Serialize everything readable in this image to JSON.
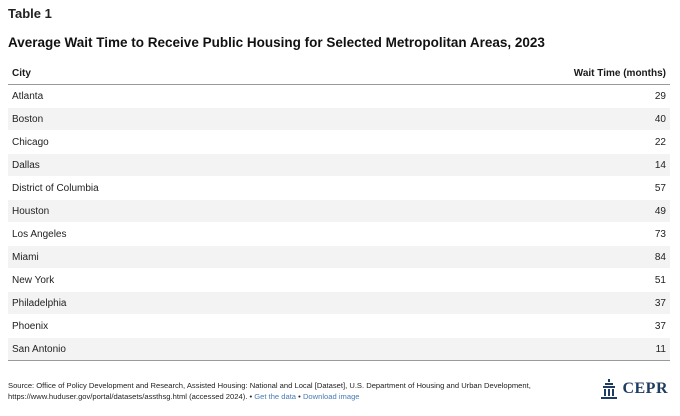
{
  "table_label": "Table 1",
  "title": "Average Wait Time to Receive Public Housing for Selected Metropolitan Areas, 2023",
  "columns": [
    "City",
    "Wait Time (months)"
  ],
  "rows": [
    {
      "city": "Atlanta",
      "wait": "29"
    },
    {
      "city": "Boston",
      "wait": "40"
    },
    {
      "city": "Chicago",
      "wait": "22"
    },
    {
      "city": "Dallas",
      "wait": "14"
    },
    {
      "city": "District of Columbia",
      "wait": "57"
    },
    {
      "city": "Houston",
      "wait": "49"
    },
    {
      "city": "Los Angeles",
      "wait": "73"
    },
    {
      "city": "Miami",
      "wait": "84"
    },
    {
      "city": "New York",
      "wait": "51"
    },
    {
      "city": "Philadelphia",
      "wait": "37"
    },
    {
      "city": "Phoenix",
      "wait": "37"
    },
    {
      "city": "San Antonio",
      "wait": "11"
    }
  ],
  "footer": {
    "source_line1": "Source: Office of Policy Development and Research, Assisted Housing: National and Local [Dataset], U.S. Department of Housing and Urban Development,",
    "source_line2": "https://www.huduser.gov/portal/datasets/assthsg.html (accessed 2024). •",
    "get_data": "Get the data",
    "separator": "•",
    "download_image": "Download image"
  },
  "logo": {
    "text": "CEPR",
    "color": "#1f3d63"
  },
  "colors": {
    "link": "#4a7bb3",
    "row_alt": "#f3f3f3",
    "rule": "#9a9a9a"
  },
  "chart_data": {
    "type": "table",
    "title": "Average Wait Time to Receive Public Housing for Selected Metropolitan Areas, 2023",
    "columns": [
      "City",
      "Wait Time (months)"
    ],
    "rows": [
      [
        "Atlanta",
        29
      ],
      [
        "Boston",
        40
      ],
      [
        "Chicago",
        22
      ],
      [
        "Dallas",
        14
      ],
      [
        "District of Columbia",
        57
      ],
      [
        "Houston",
        49
      ],
      [
        "Los Angeles",
        73
      ],
      [
        "Miami",
        84
      ],
      [
        "New York",
        51
      ],
      [
        "Philadelphia",
        37
      ],
      [
        "Phoenix",
        37
      ],
      [
        "San Antonio",
        11
      ]
    ]
  }
}
